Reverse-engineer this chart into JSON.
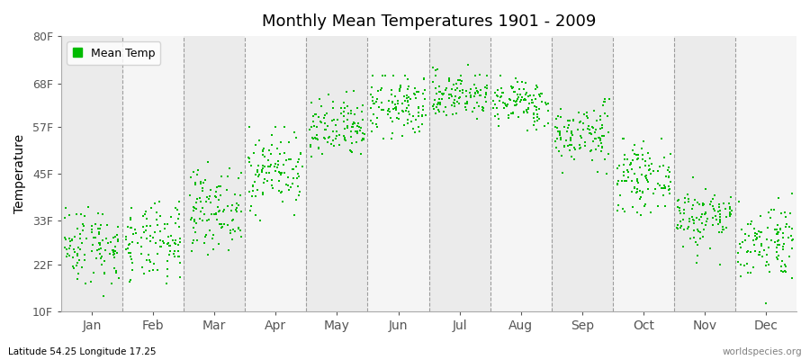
{
  "title": "Monthly Mean Temperatures 1901 - 2009",
  "ylabel": "Temperature",
  "ytick_labels": [
    "10F",
    "22F",
    "33F",
    "45F",
    "57F",
    "68F",
    "80F"
  ],
  "ytick_values": [
    10,
    22,
    33,
    45,
    57,
    68,
    80
  ],
  "ymin": 10,
  "ymax": 80,
  "months": [
    "Jan",
    "Feb",
    "Mar",
    "Apr",
    "May",
    "Jun",
    "Jul",
    "Aug",
    "Sep",
    "Oct",
    "Nov",
    "Dec"
  ],
  "dot_color": "#00bb00",
  "background_color": "#ebebeb",
  "band_color_odd": "#ebebeb",
  "band_color_even": "#f5f5f5",
  "legend_label": "Mean Temp",
  "footnote_left": "Latitude 54.25 Longitude 17.25",
  "footnote_right": "worldspecies.org",
  "mean_temps_f": [
    27,
    27,
    36,
    46,
    56,
    62,
    65,
    63,
    55,
    44,
    34,
    28
  ],
  "std_temps_f": [
    5,
    5,
    5,
    5,
    4,
    4,
    3,
    3,
    4,
    4,
    4,
    5
  ],
  "min_temps_f": [
    10,
    10,
    22,
    33,
    45,
    54,
    57,
    55,
    45,
    33,
    22,
    12
  ],
  "max_temps_f": [
    38,
    38,
    48,
    57,
    66,
    70,
    73,
    71,
    64,
    54,
    44,
    40
  ],
  "n_years": 109
}
